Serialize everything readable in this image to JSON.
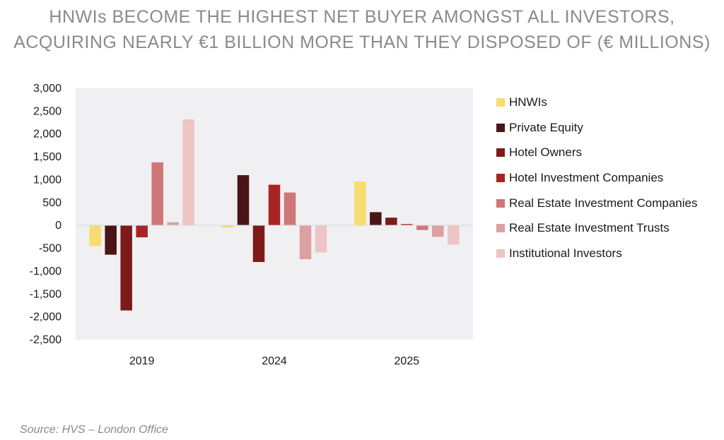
{
  "title_line1": "HNWIs BECOME THE HIGHEST NET BUYER AMONGST ALL INVESTORS,",
  "title_line2": "ACQUIRING NEARLY €1 BILLION MORE THAN THEY DISPOSED OF (€ MILLIONS)",
  "source": "Source: HVS – London Office",
  "chart_data": {
    "type": "bar",
    "categories": [
      "2019",
      "2024",
      "2025"
    ],
    "ylim": [
      -2500,
      3000
    ],
    "yticks": [
      3000,
      2500,
      2000,
      1500,
      1000,
      500,
      0,
      -500,
      -1000,
      -1500,
      -2000,
      -2500
    ],
    "ytick_labels": [
      "3,000",
      "2,500",
      "2,000",
      "1,500",
      "1,000",
      "500",
      "0",
      "-500",
      "-1,000",
      "-1,500",
      "-2,000",
      "-2,500"
    ],
    "grid": false,
    "legend_position": "right",
    "series": [
      {
        "name": "HNWIs",
        "color": "#f7dc6f",
        "values": [
          -450,
          -50,
          960
        ]
      },
      {
        "name": "Private Equity",
        "color": "#4a1515",
        "values": [
          -640,
          1100,
          290
        ]
      },
      {
        "name": "Hotel Owners",
        "color": "#7d1a1a",
        "values": [
          -1860,
          -800,
          170
        ]
      },
      {
        "name": "Hotel Investment Companies",
        "color": "#a82424",
        "values": [
          -260,
          890,
          30
        ]
      },
      {
        "name": "Real Estate Investment Companies",
        "color": "#cf7777",
        "values": [
          1380,
          720,
          -100
        ]
      },
      {
        "name": "Real Estate Investment Trusts",
        "color": "#dba0a0",
        "values": [
          70,
          -740,
          -250
        ]
      },
      {
        "name": "Institutional Investors",
        "color": "#eec4c4",
        "values": [
          2320,
          -590,
          -420
        ]
      }
    ]
  }
}
